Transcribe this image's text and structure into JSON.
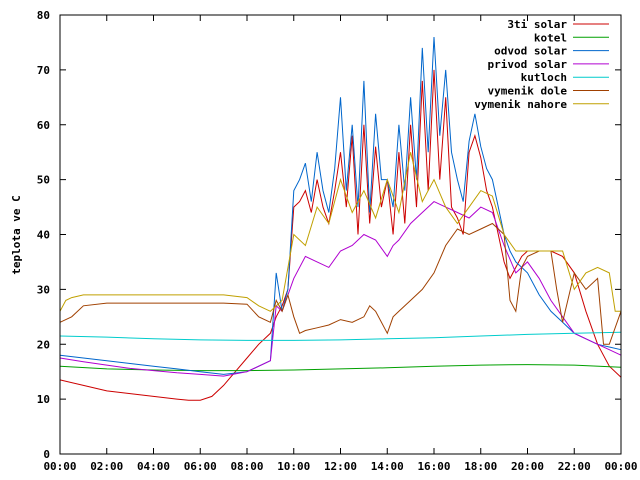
{
  "chart_data": {
    "type": "line",
    "title": "",
    "xlabel": "",
    "ylabel": "teplota ve C",
    "xlim": [
      0,
      24
    ],
    "ylim": [
      0,
      80
    ],
    "grid": false,
    "legend_position": "top-right",
    "x_ticks": [
      "00:00",
      "02:00",
      "04:00",
      "06:00",
      "08:00",
      "10:00",
      "12:00",
      "14:00",
      "16:00",
      "18:00",
      "20:00",
      "22:00",
      "00:00"
    ],
    "y_ticks": [
      "0",
      "10",
      "20",
      "30",
      "40",
      "50",
      "60",
      "70",
      "80"
    ],
    "series": [
      {
        "name": "3ti solar",
        "color": "#cc0000",
        "x": [
          0,
          1,
          2,
          3,
          4,
          5,
          5.5,
          6,
          6.5,
          7,
          7.5,
          8,
          8.5,
          9,
          9.25,
          9.5,
          9.75,
          10,
          10.25,
          10.5,
          10.75,
          11,
          11.25,
          11.5,
          11.75,
          12,
          12.25,
          12.5,
          12.75,
          13,
          13.25,
          13.5,
          13.75,
          14,
          14.25,
          14.5,
          14.75,
          15,
          15.25,
          15.5,
          15.75,
          16,
          16.25,
          16.5,
          16.75,
          17,
          17.25,
          17.5,
          17.75,
          18,
          18.25,
          18.5,
          18.75,
          19,
          19.25,
          19.5,
          19.75,
          20,
          20.5,
          21,
          21.5,
          22,
          22.5,
          23,
          23.5,
          24
        ],
        "y": [
          13.5,
          12.5,
          11.5,
          11,
          10.5,
          10,
          9.8,
          9.8,
          10.5,
          12.5,
          15,
          17.5,
          20,
          22,
          25,
          27,
          30,
          45,
          46,
          48,
          44,
          50,
          45,
          42,
          48,
          55,
          45,
          58,
          40,
          60,
          42,
          56,
          45,
          50,
          40,
          55,
          42,
          60,
          45,
          68,
          48,
          70,
          50,
          65,
          45,
          43,
          40,
          55,
          58,
          54,
          48,
          45,
          40,
          35,
          32,
          34,
          36,
          37,
          37,
          37,
          36,
          33,
          26,
          20,
          16,
          14
        ]
      },
      {
        "name": "kotel",
        "color": "#00a000",
        "x": [
          0,
          2,
          4,
          6,
          8,
          10,
          12,
          14,
          16,
          18,
          20,
          22,
          24
        ],
        "y": [
          16,
          15.5,
          15.3,
          15.2,
          15.2,
          15.3,
          15.5,
          15.7,
          16,
          16.2,
          16.3,
          16.2,
          15.8
        ]
      },
      {
        "name": "odvod solar",
        "color": "#0066cc",
        "x": [
          0,
          1,
          2,
          3,
          4,
          5,
          6,
          7,
          8,
          9,
          9.25,
          9.5,
          9.75,
          10,
          10.25,
          10.5,
          10.75,
          11,
          11.25,
          11.5,
          11.75,
          12,
          12.25,
          12.5,
          12.75,
          13,
          13.25,
          13.5,
          13.75,
          14,
          14.25,
          14.5,
          14.75,
          15,
          15.25,
          15.5,
          15.75,
          16,
          16.25,
          16.5,
          16.75,
          17,
          17.25,
          17.5,
          17.75,
          18,
          18.25,
          18.5,
          18.75,
          19,
          19.25,
          19.5,
          19.75,
          20,
          20.5,
          21,
          21.5,
          22,
          22.5,
          23,
          23.5,
          24
        ],
        "y": [
          18,
          17.5,
          17,
          16.5,
          16,
          15.5,
          15,
          14.5,
          15,
          17,
          33,
          26,
          30,
          48,
          50,
          53,
          46,
          55,
          48,
          44,
          52,
          65,
          48,
          60,
          45,
          68,
          44,
          62,
          50,
          50,
          45,
          60,
          48,
          65,
          50,
          74,
          55,
          76,
          58,
          70,
          55,
          50,
          46,
          57,
          62,
          56,
          52,
          50,
          45,
          40,
          37,
          35,
          34,
          33,
          29,
          26,
          24,
          22,
          21,
          20,
          19.5,
          19
        ]
      },
      {
        "name": "privod solar",
        "color": "#b000d0",
        "x": [
          0,
          1,
          2,
          3,
          4,
          5,
          6,
          7,
          8,
          9,
          9.25,
          9.5,
          10,
          10.5,
          11,
          11.5,
          12,
          12.5,
          13,
          13.5,
          14,
          14.25,
          14.5,
          15,
          15.5,
          16,
          16.5,
          17,
          17.5,
          18,
          18.5,
          19,
          19.5,
          20,
          20.5,
          21,
          21.5,
          22,
          22.5,
          23,
          23.5,
          24
        ],
        "y": [
          17.5,
          16.8,
          16.2,
          15.6,
          15.2,
          14.8,
          14.5,
          14.2,
          15,
          17,
          27,
          26,
          32,
          36,
          35,
          34,
          37,
          38,
          40,
          39,
          36,
          38,
          39,
          42,
          44,
          46,
          45,
          44,
          43,
          45,
          44,
          38,
          33,
          35,
          32,
          28,
          25,
          22,
          21,
          20,
          19,
          18
        ]
      },
      {
        "name": "kutloch",
        "color": "#00cccc",
        "x": [
          0,
          2,
          4,
          6,
          8,
          10,
          12,
          14,
          16,
          18,
          20,
          22,
          24
        ],
        "y": [
          21.5,
          21.3,
          21,
          20.8,
          20.7,
          20.7,
          20.8,
          21,
          21.2,
          21.5,
          21.8,
          22,
          22.2
        ]
      },
      {
        "name": "vymenik dole",
        "color": "#a04000",
        "x": [
          0,
          0.5,
          1,
          2,
          4,
          6,
          7,
          8,
          8.5,
          9,
          9.25,
          9.5,
          9.75,
          10,
          10.25,
          10.5,
          11,
          11.5,
          12,
          12.5,
          13,
          13.25,
          13.5,
          14,
          14.25,
          14.5,
          15,
          15.5,
          16,
          16.5,
          17,
          17.5,
          18,
          18.5,
          19,
          19.25,
          19.5,
          19.75,
          20,
          20.5,
          21,
          21.25,
          21.5,
          22,
          22.5,
          23,
          23.25,
          23.5,
          24
        ],
        "y": [
          24,
          25,
          27,
          27.5,
          27.5,
          27.5,
          27.5,
          27.3,
          25,
          24,
          28,
          26,
          29,
          25,
          22,
          22.5,
          23,
          23.5,
          24.5,
          24,
          25,
          27,
          26,
          22,
          25,
          26,
          28,
          30,
          33,
          38,
          41,
          40,
          41,
          42,
          40,
          28,
          26,
          34,
          36,
          37,
          37,
          30,
          24,
          33,
          30,
          32,
          20,
          20,
          26
        ]
      },
      {
        "name": "vymenik nahore",
        "color": "#c0a000",
        "x": [
          0,
          0.25,
          0.5,
          1,
          2,
          4,
          6,
          7,
          8,
          8.5,
          9,
          9.5,
          10,
          10.5,
          11,
          11.5,
          12,
          12.5,
          13,
          13.5,
          14,
          14.5,
          15,
          15.5,
          16,
          16.5,
          17,
          17.5,
          18,
          18.5,
          19,
          19.5,
          20,
          20.5,
          21,
          21.5,
          22,
          22.5,
          23,
          23.5,
          23.75,
          24
        ],
        "y": [
          26,
          28,
          28.5,
          29,
          29,
          29,
          29,
          29,
          28.5,
          27,
          26,
          28,
          40,
          38,
          45,
          42,
          50,
          44,
          48,
          43,
          50,
          44,
          55,
          46,
          50,
          45,
          42,
          45,
          48,
          47,
          40,
          37,
          37,
          37,
          37,
          37,
          30,
          33,
          34,
          33,
          26,
          26
        ]
      }
    ]
  }
}
